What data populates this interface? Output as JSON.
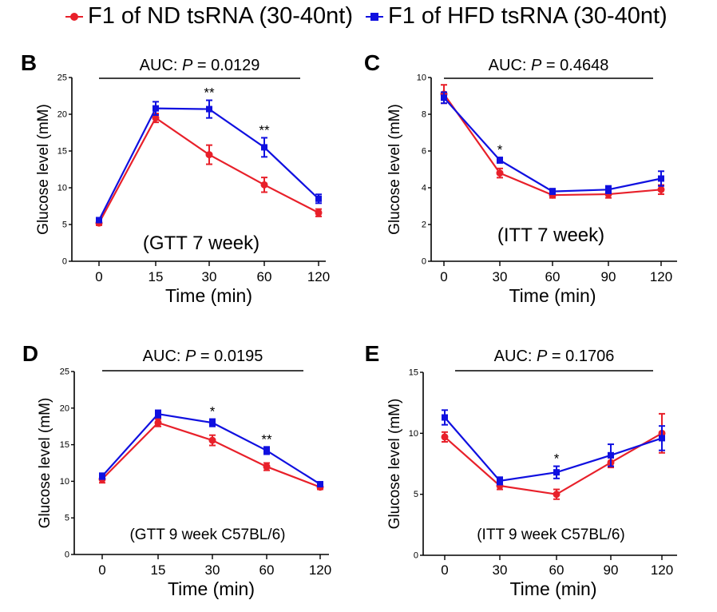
{
  "colors": {
    "nd": "#e8202a",
    "hfd": "#1010e0"
  },
  "legend": {
    "nd_label": "F1 of ND tsRNA (30-40nt)",
    "hfd_label": "F1 of HFD tsRNA (30-40nt)"
  },
  "chart_data": [
    {
      "type": "line",
      "panel_label": "B",
      "annotation": "(GTT 7 week)",
      "auc_prefix": "AUC: ",
      "auc_p": "P",
      "auc_value": " = 0.0129",
      "xlabel": "Time (min)",
      "ylabel": "Glucose level (mM)",
      "categories": [
        "0",
        "15",
        "30",
        "60",
        "120"
      ],
      "ylim": [
        0,
        25
      ],
      "yticks": [
        0,
        5,
        10,
        15,
        20,
        25
      ],
      "series": [
        {
          "key": "nd",
          "values": [
            5.2,
            19.5,
            14.5,
            10.4,
            6.6
          ],
          "errors": [
            0.3,
            0.6,
            1.3,
            1.0,
            0.5
          ]
        },
        {
          "key": "hfd",
          "values": [
            5.6,
            20.8,
            20.7,
            15.5,
            8.5
          ],
          "errors": [
            0.3,
            0.9,
            1.2,
            1.3,
            0.6
          ]
        }
      ],
      "significance": [
        {
          "index": 2,
          "text": "**"
        },
        {
          "index": 3,
          "text": "**"
        }
      ]
    },
    {
      "type": "line",
      "panel_label": "C",
      "annotation": "(ITT 7 week)",
      "auc_prefix": "AUC: ",
      "auc_p": "P",
      "auc_value": " = 0.4648",
      "xlabel": "Time (min)",
      "ylabel": "Glucose level (mM)",
      "categories": [
        "0",
        "30",
        "60",
        "90",
        "120"
      ],
      "ylim": [
        0,
        10
      ],
      "yticks": [
        0,
        2,
        4,
        6,
        8,
        10
      ],
      "series": [
        {
          "key": "nd",
          "values": [
            9.1,
            4.8,
            3.6,
            3.65,
            3.9
          ],
          "errors": [
            0.5,
            0.25,
            0.15,
            0.2,
            0.25
          ]
        },
        {
          "key": "hfd",
          "values": [
            8.9,
            5.5,
            3.8,
            3.9,
            4.5
          ],
          "errors": [
            0.3,
            0.15,
            0.15,
            0.2,
            0.4
          ]
        }
      ],
      "significance": [
        {
          "index": 1,
          "text": "*"
        }
      ]
    },
    {
      "type": "line",
      "panel_label": "D",
      "annotation": "(GTT 9 week C57BL/6)",
      "auc_prefix": "AUC: ",
      "auc_p": "P",
      "auc_value": " = 0.0195",
      "xlabel": "Time (min)",
      "ylabel": "Glucose level (mM)",
      "categories": [
        "0",
        "15",
        "30",
        "60",
        "120"
      ],
      "ylim": [
        0,
        25
      ],
      "yticks": [
        0,
        5,
        10,
        15,
        20,
        25
      ],
      "series": [
        {
          "key": "nd",
          "values": [
            10.3,
            18.0,
            15.6,
            12.0,
            9.2
          ],
          "errors": [
            0.5,
            0.5,
            0.7,
            0.5,
            0.3
          ]
        },
        {
          "key": "hfd",
          "values": [
            10.7,
            19.2,
            18.0,
            14.2,
            9.6
          ],
          "errors": [
            0.4,
            0.5,
            0.5,
            0.5,
            0.3
          ]
        }
      ],
      "significance": [
        {
          "index": 2,
          "text": "*"
        },
        {
          "index": 3,
          "text": "**"
        }
      ]
    },
    {
      "type": "line",
      "panel_label": "E",
      "annotation": "(ITT  9 week C57BL/6)",
      "auc_prefix": "AUC: ",
      "auc_p": "P",
      "auc_value": " = 0.1706",
      "xlabel": "Time (min)",
      "ylabel": "Glucose level (mM)",
      "categories": [
        "0",
        "30",
        "60",
        "90",
        "120"
      ],
      "ylim": [
        0,
        15
      ],
      "yticks": [
        0,
        5,
        10,
        15
      ],
      "series": [
        {
          "key": "nd",
          "values": [
            9.7,
            5.7,
            5.0,
            7.6,
            10.0
          ],
          "errors": [
            0.4,
            0.3,
            0.4,
            0.4,
            1.6
          ]
        },
        {
          "key": "hfd",
          "values": [
            11.3,
            6.1,
            6.8,
            8.2,
            9.6
          ],
          "errors": [
            0.6,
            0.3,
            0.5,
            0.9,
            1.0
          ]
        }
      ],
      "significance": [
        {
          "index": 2,
          "text": "*"
        }
      ]
    }
  ]
}
